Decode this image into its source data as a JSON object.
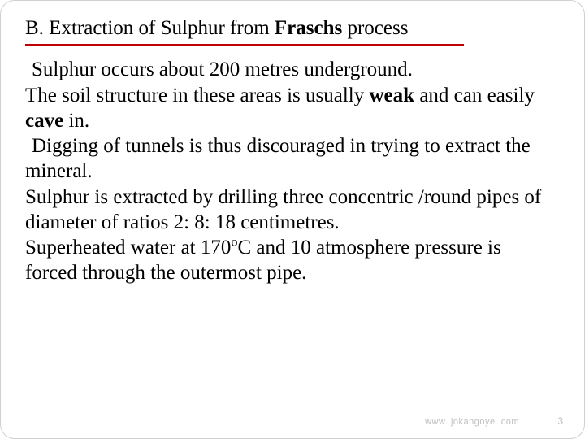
{
  "title": {
    "prefix": "B. Extraction of Sulphur from ",
    "bold": "Fraschs",
    "suffix": " process"
  },
  "body": {
    "p1a": "Sulphur occurs about 200 metres underground.",
    "p1b_pre": "The soil structure in these areas is usually ",
    "p1b_weak": "weak",
    "p1b_mid": " and can easily ",
    "p1b_cave": "cave",
    "p1b_post": " in.",
    "p2": "Digging of tunnels is thus discouraged in trying to extract the mineral.",
    "p3": "Sulphur is extracted by drilling three concentric /round pipes of diameter of ratios 2: 8: 18 centimetres.",
    "p4_pre": "Superheated water at 170",
    "p4_sup": "o",
    "p4_post": "C and 10 atmosphere pressure is forced through the outermost pipe."
  },
  "footer": {
    "url": "www. jokangoye. com",
    "page": "3"
  },
  "style": {
    "underline_color": "#c00000",
    "footer_color": "#bfbfbf"
  }
}
